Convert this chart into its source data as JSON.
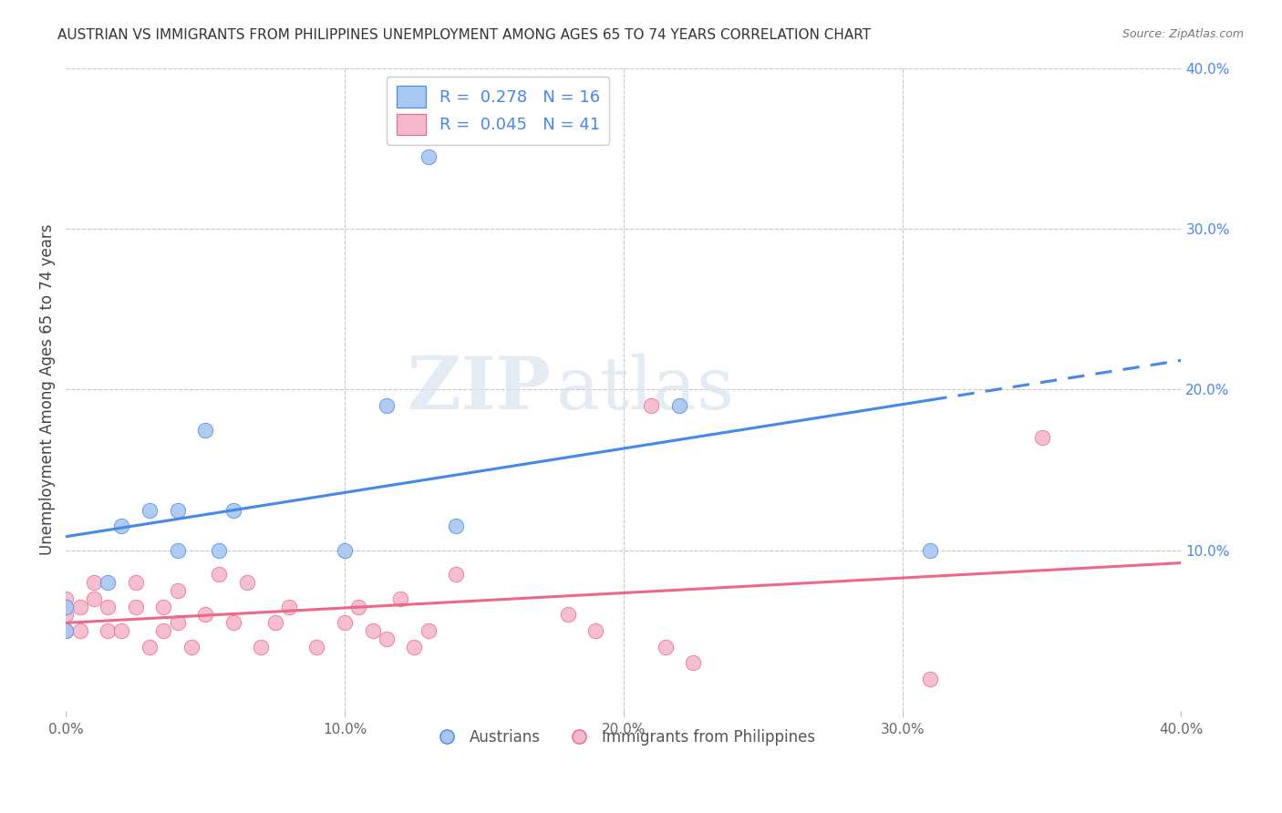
{
  "title": "AUSTRIAN VS IMMIGRANTS FROM PHILIPPINES UNEMPLOYMENT AMONG AGES 65 TO 74 YEARS CORRELATION CHART",
  "source": "Source: ZipAtlas.com",
  "ylabel": "Unemployment Among Ages 65 to 74 years",
  "xlim": [
    0.0,
    0.4
  ],
  "ylim": [
    0.0,
    0.4
  ],
  "background_color": "#ffffff",
  "grid_color": "#c8c8c8",
  "austrians_color": "#a8c8f0",
  "philippines_color": "#f4b8cc",
  "regression_blue": "#4488ee",
  "regression_pink": "#ee6688",
  "legend_R_blue": "0.278",
  "legend_N_blue": "16",
  "legend_R_pink": "0.045",
  "legend_N_pink": "41",
  "watermark_zip": "ZIP",
  "watermark_atlas": "atlas",
  "austrians_x": [
    0.0,
    0.0,
    0.015,
    0.02,
    0.03,
    0.04,
    0.04,
    0.05,
    0.055,
    0.06,
    0.1,
    0.115,
    0.13,
    0.14,
    0.22,
    0.31
  ],
  "austrians_y": [
    0.05,
    0.065,
    0.08,
    0.115,
    0.125,
    0.1,
    0.125,
    0.175,
    0.1,
    0.125,
    0.1,
    0.19,
    0.345,
    0.115,
    0.19,
    0.1
  ],
  "philippines_x": [
    0.0,
    0.0,
    0.0,
    0.005,
    0.005,
    0.01,
    0.01,
    0.015,
    0.015,
    0.02,
    0.025,
    0.025,
    0.03,
    0.035,
    0.035,
    0.04,
    0.04,
    0.045,
    0.05,
    0.055,
    0.06,
    0.065,
    0.07,
    0.075,
    0.08,
    0.09,
    0.1,
    0.105,
    0.11,
    0.115,
    0.12,
    0.125,
    0.13,
    0.14,
    0.18,
    0.19,
    0.21,
    0.215,
    0.225,
    0.31,
    0.35
  ],
  "philippines_y": [
    0.05,
    0.06,
    0.07,
    0.05,
    0.065,
    0.07,
    0.08,
    0.05,
    0.065,
    0.05,
    0.065,
    0.08,
    0.04,
    0.05,
    0.065,
    0.055,
    0.075,
    0.04,
    0.06,
    0.085,
    0.055,
    0.08,
    0.04,
    0.055,
    0.065,
    0.04,
    0.055,
    0.065,
    0.05,
    0.045,
    0.07,
    0.04,
    0.05,
    0.085,
    0.06,
    0.05,
    0.19,
    0.04,
    0.03,
    0.02,
    0.17
  ]
}
